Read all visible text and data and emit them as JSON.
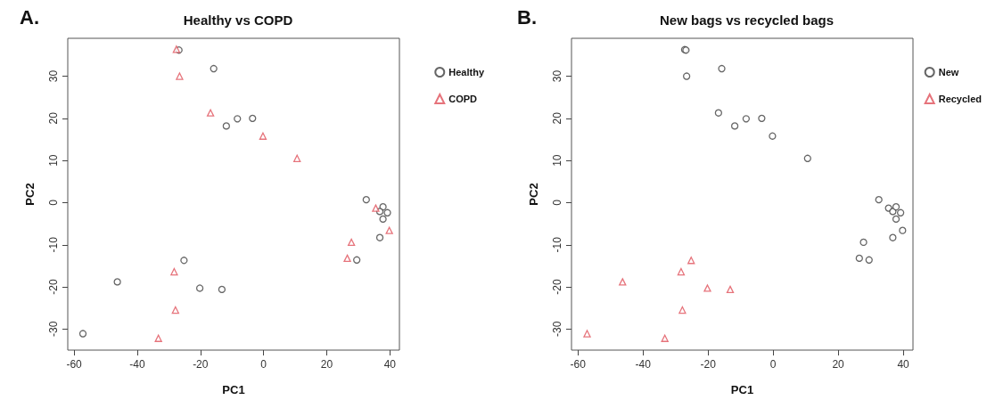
{
  "chart_data": [
    {
      "type": "scatter",
      "title": "Healthy vs COPD",
      "xlabel": "PC1",
      "ylabel": "PC2",
      "annotations": [
        "A."
      ],
      "xlim": [
        -62,
        43
      ],
      "xticks": [
        -60,
        -40,
        -20,
        0,
        20,
        40
      ],
      "ylim": [
        -35,
        39
      ],
      "yticks": [
        -30,
        -20,
        -10,
        0,
        10,
        20,
        30
      ],
      "grid": false,
      "legend": "right",
      "series": [
        {
          "name": "Healthy",
          "color": "#404040",
          "marker": "circle",
          "x": [
            -26.8,
            -15.8,
            -11.8,
            -8.3,
            -3.5,
            32.5,
            37.8,
            36.8,
            39.2,
            37.8,
            36.8,
            29.5,
            -25.2,
            -46.3,
            -20.2,
            -13.2,
            -57.2
          ],
          "values": [
            36.2,
            31.8,
            18.2,
            19.9,
            20,
            0.7,
            -1,
            -2.1,
            -2.4,
            -3.9,
            -8.3,
            -13.6,
            -13.7,
            -18.8,
            -20.3,
            -20.6,
            -31.1
          ]
        },
        {
          "name": "COPD",
          "color": "#e0505a",
          "marker": "triangle",
          "x": [
            -27.6,
            -26.6,
            -16.8,
            -0.2,
            10.6,
            35.5,
            39.8,
            27.8,
            26.5,
            -28.3,
            -27.9,
            -33.3
          ],
          "values": [
            36.4,
            30,
            21.3,
            15.8,
            10.5,
            -1.3,
            -6.6,
            -9.4,
            -13.2,
            -16.4,
            -25.5,
            -32.2
          ]
        }
      ]
    },
    {
      "type": "scatter",
      "title": "New bags vs recycled bags",
      "xlabel": "PC1",
      "ylabel": "PC2",
      "annotations": [
        "B."
      ],
      "xlim": [
        -62,
        43
      ],
      "xticks": [
        -60,
        -40,
        -20,
        0,
        20,
        40
      ],
      "ylim": [
        -35,
        39
      ],
      "yticks": [
        -30,
        -20,
        -10,
        0,
        10,
        20,
        30
      ],
      "grid": false,
      "legend": "right",
      "series": [
        {
          "name": "New",
          "color": "#404040",
          "marker": "circle",
          "x": [
            -27.2,
            -26.8,
            -26.6,
            -15.8,
            -16.8,
            -11.8,
            -8.3,
            -3.5,
            -0.2,
            10.6,
            32.5,
            35.5,
            36.8,
            37.8,
            39.2,
            37.8,
            36.8,
            39.8,
            27.8,
            26.5,
            29.5
          ],
          "values": [
            36.3,
            36.2,
            30,
            31.8,
            21.3,
            18.2,
            19.9,
            20,
            15.8,
            10.5,
            0.7,
            -1.3,
            -2.1,
            -1,
            -2.4,
            -3.9,
            -8.3,
            -6.6,
            -9.4,
            -13.2,
            -13.6
          ]
        },
        {
          "name": "Recycled",
          "color": "#e0505a",
          "marker": "triangle",
          "x": [
            -25.2,
            -28.3,
            -46.3,
            -20.2,
            -13.2,
            -27.9,
            -57.2,
            -33.3
          ],
          "values": [
            -13.7,
            -16.4,
            -18.8,
            -20.3,
            -20.6,
            -25.5,
            -31.1,
            -32.2
          ]
        }
      ]
    }
  ]
}
